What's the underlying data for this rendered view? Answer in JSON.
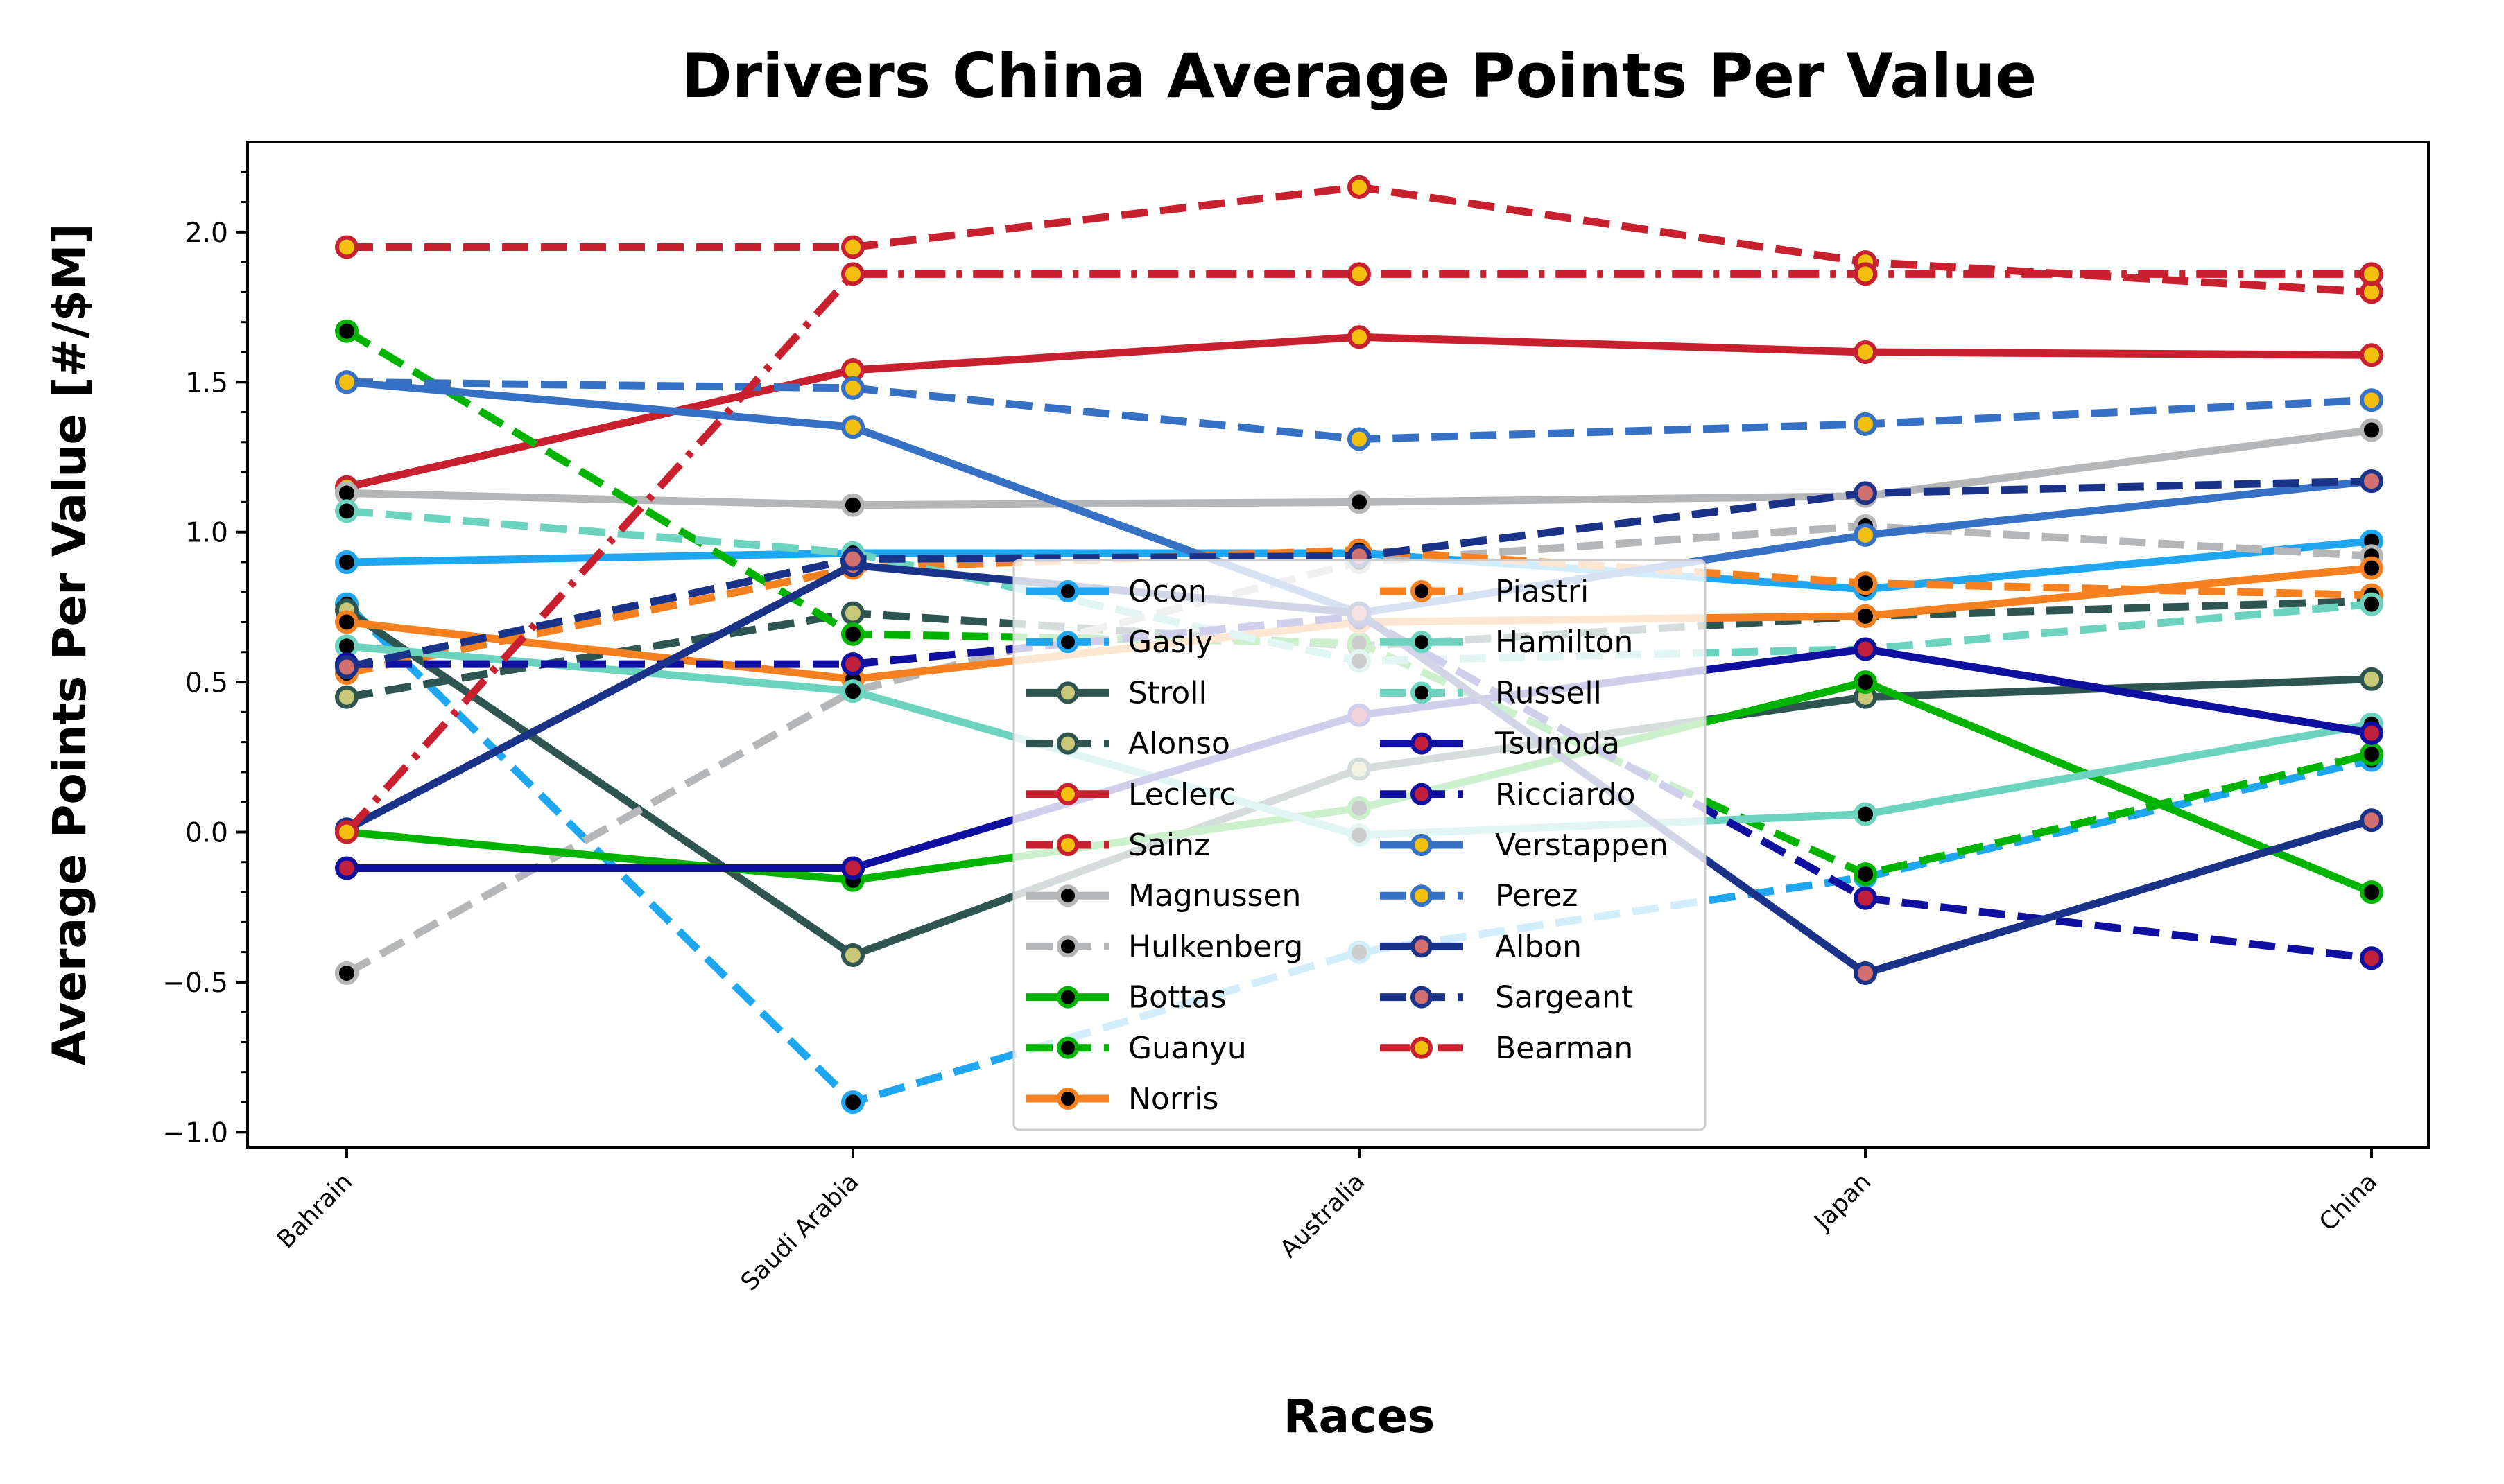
{
  "chart_data": {
    "type": "line",
    "title": "Drivers China Average Points Per Value",
    "xlabel": "Races",
    "ylabel": "Average Points Per Value [#/$M]",
    "categories": [
      "Bahrain",
      "Saudi Arabia",
      "Australia",
      "Japan",
      "China"
    ],
    "ylim": [
      -1.05,
      2.3
    ],
    "yticks": [
      -1.0,
      -0.5,
      0.0,
      0.5,
      1.0,
      1.5,
      2.0
    ],
    "ytick_labels": [
      "−1.0",
      "−0.5",
      "0.0",
      "0.5",
      "1.0",
      "1.5",
      "2.0"
    ],
    "grid": false,
    "legend": {
      "placement": "lower-center",
      "columns": 2
    },
    "series": [
      {
        "name": "Ocon",
        "values": [
          0.9,
          0.93,
          0.93,
          0.81,
          0.97
        ],
        "color": "#1ea7f0",
        "dash": "solid",
        "marker": "#000000",
        "edge": "#1ea7f0"
      },
      {
        "name": "Gasly",
        "values": [
          0.76,
          -0.9,
          -0.4,
          -0.15,
          0.24
        ],
        "color": "#1ea7f0",
        "dash": "dashed",
        "marker": "#000000",
        "edge": "#1ea7f0"
      },
      {
        "name": "Stroll",
        "values": [
          0.74,
          -0.41,
          0.21,
          0.45,
          0.51
        ],
        "color": "#2e5550",
        "dash": "solid",
        "marker": "#c8c878",
        "edge": "#2e5550"
      },
      {
        "name": "Alonso",
        "values": [
          0.45,
          0.73,
          0.62,
          0.72,
          0.77
        ],
        "color": "#2e5550",
        "dash": "dashed",
        "marker": "#c8c878",
        "edge": "#2e5550"
      },
      {
        "name": "Leclerc",
        "values": [
          1.15,
          1.54,
          1.65,
          1.6,
          1.59
        ],
        "color": "#c8202e",
        "dash": "solid",
        "marker": "#f4c010",
        "edge": "#c8202e"
      },
      {
        "name": "Sainz",
        "values": [
          1.95,
          1.95,
          2.15,
          1.9,
          1.8
        ],
        "color": "#c8202e",
        "dash": "dashed",
        "marker": "#f4c010",
        "edge": "#c8202e"
      },
      {
        "name": "Magnussen",
        "values": [
          1.13,
          1.09,
          1.1,
          1.12,
          1.34
        ],
        "color": "#b4b6b8",
        "dash": "solid",
        "marker": "#000000",
        "edge": "#b4b6b8"
      },
      {
        "name": "Hulkenberg",
        "values": [
          -0.47,
          0.47,
          0.9,
          1.02,
          0.92
        ],
        "color": "#b4b6b8",
        "dash": "dashed",
        "marker": "#000000",
        "edge": "#b4b6b8"
      },
      {
        "name": "Bottas",
        "values": [
          0.0,
          -0.16,
          0.08,
          0.5,
          -0.2
        ],
        "color": "#00b400",
        "dash": "solid",
        "marker": "#000000",
        "edge": "#00b400"
      },
      {
        "name": "Guanyu",
        "values": [
          1.67,
          0.66,
          0.63,
          -0.14,
          0.26
        ],
        "color": "#00b400",
        "dash": "dashed",
        "marker": "#000000",
        "edge": "#00b400"
      },
      {
        "name": "Norris",
        "values": [
          0.7,
          0.51,
          0.7,
          0.72,
          0.88
        ],
        "color": "#f58020",
        "dash": "solid",
        "marker": "#000000",
        "edge": "#f58020"
      },
      {
        "name": "Piastri",
        "values": [
          0.53,
          0.88,
          0.94,
          0.83,
          0.79
        ],
        "color": "#f58020",
        "dash": "dashed",
        "marker": "#000000",
        "edge": "#f58020"
      },
      {
        "name": "Hamilton",
        "values": [
          0.62,
          0.47,
          -0.01,
          0.06,
          0.36
        ],
        "color": "#6cd3bf",
        "dash": "solid",
        "marker": "#000000",
        "edge": "#6cd3bf"
      },
      {
        "name": "Russell",
        "values": [
          1.07,
          0.93,
          0.57,
          0.61,
          0.76
        ],
        "color": "#6cd3bf",
        "dash": "dashed",
        "marker": "#000000",
        "edge": "#6cd3bf"
      },
      {
        "name": "Tsunoda",
        "values": [
          -0.12,
          -0.12,
          0.39,
          0.61,
          0.33
        ],
        "color": "#1010a0",
        "dash": "solid",
        "marker": "#c0203c",
        "edge": "#1010a0"
      },
      {
        "name": "Ricciardo",
        "values": [
          0.56,
          0.56,
          0.72,
          -0.22,
          -0.42
        ],
        "color": "#1010a0",
        "dash": "dashed",
        "marker": "#c0203c",
        "edge": "#1010a0"
      },
      {
        "name": "Verstappen",
        "values": [
          1.5,
          1.35,
          0.73,
          0.99,
          1.17
        ],
        "color": "#3671c6",
        "dash": "solid",
        "marker": "#f4c010",
        "edge": "#3671c6"
      },
      {
        "name": "Perez",
        "values": [
          1.5,
          1.48,
          1.31,
          1.36,
          1.44
        ],
        "color": "#3671c6",
        "dash": "dashed",
        "marker": "#f4c010",
        "edge": "#3671c6"
      },
      {
        "name": "Albon",
        "values": [
          0.01,
          0.89,
          0.73,
          -0.47,
          0.04
        ],
        "color": "#1a3388",
        "dash": "solid",
        "marker": "#d07070",
        "edge": "#1a3388"
      },
      {
        "name": "Sargeant",
        "values": [
          0.55,
          0.91,
          0.92,
          1.13,
          1.17
        ],
        "color": "#1a3388",
        "dash": "dashed",
        "marker": "#d07070",
        "edge": "#1a3388"
      },
      {
        "name": "Bearman",
        "values": [
          0.0,
          1.86,
          1.86,
          1.86,
          1.86
        ],
        "color": "#c8202e",
        "dash": "dashdot",
        "marker": "#f4c010",
        "edge": "#c8202e"
      }
    ]
  }
}
